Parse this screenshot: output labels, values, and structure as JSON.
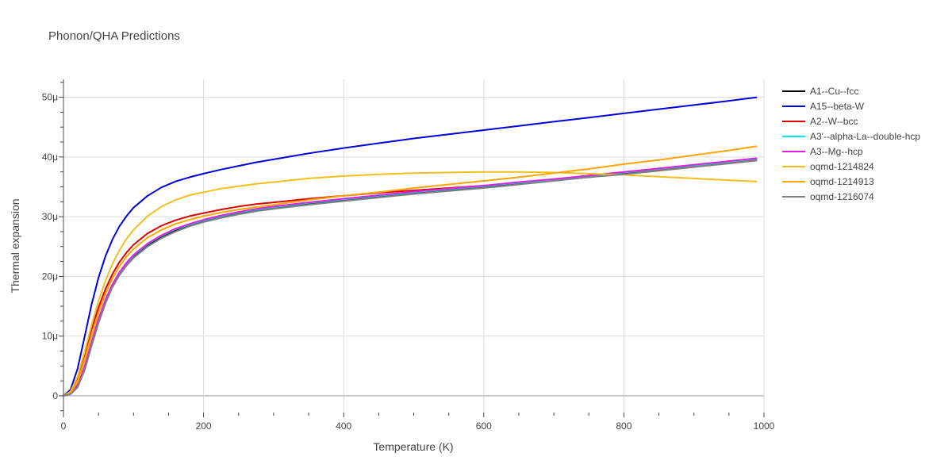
{
  "chart_data": {
    "type": "line",
    "title": "Phonon/QHA Predictions",
    "xlabel": "Temperature (K)",
    "ylabel": "Thermal expansion",
    "xlim": [
      0,
      1000
    ],
    "ylim": [
      -2.8e-06,
      5.3e-05
    ],
    "x_ticks": [
      0,
      200,
      400,
      600,
      800,
      1000
    ],
    "x_tick_labels": [
      "0",
      "200",
      "400",
      "600",
      "800",
      "1000"
    ],
    "y_ticks": [
      0,
      1e-05,
      2e-05,
      3e-05,
      4e-05,
      5e-05
    ],
    "y_tick_labels": [
      "0",
      "10μ",
      "20μ",
      "30μ",
      "40μ",
      "50μ"
    ],
    "grid": true,
    "legend_position": "right",
    "x": [
      0,
      10,
      20,
      30,
      40,
      50,
      60,
      70,
      80,
      90,
      100,
      120,
      140,
      160,
      180,
      200,
      225,
      250,
      275,
      300,
      350,
      400,
      450,
      500,
      550,
      600,
      650,
      700,
      750,
      800,
      850,
      900,
      950,
      990
    ],
    "series": [
      {
        "name": "A1--Cu--fcc",
        "color": "#000000",
        "values": [
          0,
          3e-07,
          1.6e-06,
          4.5e-06,
          8.6e-06,
          1.25e-05,
          1.58e-05,
          1.85e-05,
          2.04e-05,
          2.2e-05,
          2.33e-05,
          2.52e-05,
          2.66e-05,
          2.77e-05,
          2.85e-05,
          2.92e-05,
          2.99e-05,
          3.05e-05,
          3.1e-05,
          3.14e-05,
          3.21e-05,
          3.27e-05,
          3.33e-05,
          3.39e-05,
          3.44e-05,
          3.49e-05,
          3.55e-05,
          3.61e-05,
          3.66e-05,
          3.72e-05,
          3.78e-05,
          3.84e-05,
          3.9e-05,
          3.95e-05
        ]
      },
      {
        "name": "A15--beta-W",
        "color": "#0000dd",
        "values": [
          0,
          1e-06,
          4.5e-06,
          9.8e-06,
          1.52e-05,
          1.98e-05,
          2.34e-05,
          2.62e-05,
          2.84e-05,
          3.01e-05,
          3.15e-05,
          3.35e-05,
          3.49e-05,
          3.59e-05,
          3.66e-05,
          3.72e-05,
          3.79e-05,
          3.85e-05,
          3.91e-05,
          3.96e-05,
          4.06e-05,
          4.15e-05,
          4.23e-05,
          4.31e-05,
          4.38e-05,
          4.45e-05,
          4.52e-05,
          4.59e-05,
          4.66e-05,
          4.73e-05,
          4.8e-05,
          4.87e-05,
          4.94e-05,
          5e-05
        ]
      },
      {
        "name": "A2--W--bcc",
        "color": "#dd0000",
        "values": [
          0,
          7e-07,
          3e-06,
          6.9e-06,
          1.11e-05,
          1.48e-05,
          1.79e-05,
          2.04e-05,
          2.24e-05,
          2.4e-05,
          2.53e-05,
          2.72e-05,
          2.85e-05,
          2.94e-05,
          3.01e-05,
          3.06e-05,
          3.12e-05,
          3.17e-05,
          3.21e-05,
          3.24e-05,
          3.3e-05,
          3.35e-05,
          3.4e-05,
          3.44e-05,
          3.48e-05,
          3.52e-05,
          3.57e-05,
          3.62e-05,
          3.68e-05,
          3.74e-05,
          3.79e-05,
          3.85e-05,
          3.91e-05,
          3.96e-05
        ]
      },
      {
        "name": "A3'--alpha-La--double-hcp",
        "color": "#00e8e8",
        "values": [
          0,
          3.5e-07,
          1.8e-06,
          4.8e-06,
          8.9e-06,
          1.28e-05,
          1.6e-05,
          1.86e-05,
          2.06e-05,
          2.22e-05,
          2.35e-05,
          2.54e-05,
          2.68e-05,
          2.79e-05,
          2.87e-05,
          2.94e-05,
          3.01e-05,
          3.07e-05,
          3.12e-05,
          3.16e-05,
          3.23e-05,
          3.29e-05,
          3.35e-05,
          3.41e-05,
          3.46e-05,
          3.51e-05,
          3.57e-05,
          3.62e-05,
          3.68e-05,
          3.74e-05,
          3.8e-05,
          3.86e-05,
          3.92e-05,
          3.97e-05
        ]
      },
      {
        "name": "A3--Mg--hcp",
        "color": "#e020e0",
        "values": [
          0,
          3.5e-07,
          1.8e-06,
          4.8e-06,
          8.9e-06,
          1.29e-05,
          1.61e-05,
          1.87e-05,
          2.07e-05,
          2.23e-05,
          2.36e-05,
          2.55e-05,
          2.69e-05,
          2.8e-05,
          2.88e-05,
          2.95e-05,
          3.02e-05,
          3.08e-05,
          3.13e-05,
          3.17e-05,
          3.24e-05,
          3.3e-05,
          3.36e-05,
          3.42e-05,
          3.47e-05,
          3.52e-05,
          3.58e-05,
          3.63e-05,
          3.69e-05,
          3.75e-05,
          3.81e-05,
          3.87e-05,
          3.93e-05,
          3.98e-05
        ]
      },
      {
        "name": "oqmd-1214824",
        "color": "#f0c020",
        "values": [
          0,
          7e-07,
          3.2e-06,
          7.3e-06,
          1.18e-05,
          1.59e-05,
          1.93e-05,
          2.21e-05,
          2.44e-05,
          2.63e-05,
          2.78e-05,
          3.01e-05,
          3.17e-05,
          3.28e-05,
          3.36e-05,
          3.41e-05,
          3.47e-05,
          3.51e-05,
          3.55e-05,
          3.58e-05,
          3.64e-05,
          3.68e-05,
          3.71e-05,
          3.73e-05,
          3.74e-05,
          3.75e-05,
          3.75e-05,
          3.74e-05,
          3.72e-05,
          3.7e-05,
          3.67e-05,
          3.64e-05,
          3.61e-05,
          3.59e-05
        ]
      },
      {
        "name": "oqmd-1214913",
        "color": "#ffa500",
        "values": [
          0,
          5e-07,
          2.3e-06,
          5.8e-06,
          1e-05,
          1.39e-05,
          1.71e-05,
          1.97e-05,
          2.17e-05,
          2.33e-05,
          2.46e-05,
          2.65e-05,
          2.78e-05,
          2.88e-05,
          2.95e-05,
          3.01e-05,
          3.07e-05,
          3.12e-05,
          3.16e-05,
          3.2e-05,
          3.28e-05,
          3.35e-05,
          3.41e-05,
          3.48e-05,
          3.54e-05,
          3.6e-05,
          3.66e-05,
          3.73e-05,
          3.8e-05,
          3.88e-05,
          3.95e-05,
          4.03e-05,
          4.11e-05,
          4.18e-05
        ]
      },
      {
        "name": "oqmd-1216074",
        "color": "#808080",
        "values": [
          0,
          2.5e-07,
          1.4e-06,
          4.2e-06,
          8.3e-06,
          1.22e-05,
          1.55e-05,
          1.82e-05,
          2.02e-05,
          2.18e-05,
          2.31e-05,
          2.5e-05,
          2.64e-05,
          2.75e-05,
          2.84e-05,
          2.91e-05,
          2.98e-05,
          3.04e-05,
          3.09e-05,
          3.13e-05,
          3.2e-05,
          3.26e-05,
          3.32e-05,
          3.38e-05,
          3.43e-05,
          3.48e-05,
          3.54e-05,
          3.6e-05,
          3.66e-05,
          3.71e-05,
          3.77e-05,
          3.83e-05,
          3.89e-05,
          3.94e-05
        ]
      }
    ]
  }
}
